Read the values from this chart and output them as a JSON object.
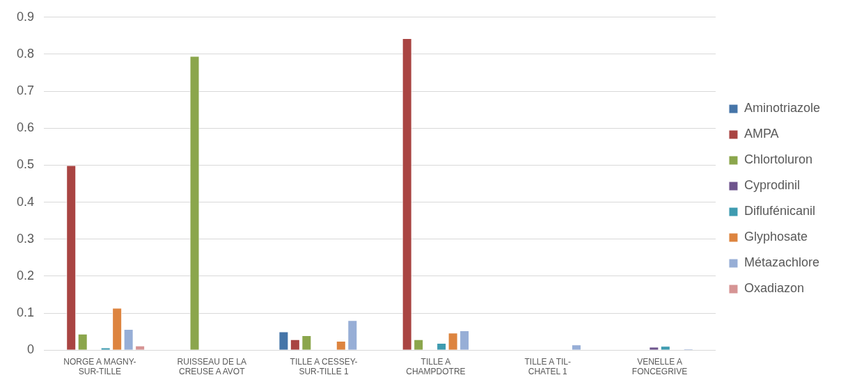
{
  "chart_data": {
    "type": "bar",
    "categories": [
      "NORGE A MAGNY-SUR-TILLE",
      "RUISSEAU DE LA CREUSE A AVOT",
      "TILLE A CESSEY-SUR-TILLE 1",
      "TILLE A CHAMPDOTRE",
      "TILLE A TIL-CHATEL 1",
      "VENELLE A FONCEGRIVE"
    ],
    "series": [
      {
        "name": "Aminotriazole",
        "color": "#4675a8",
        "values": [
          null,
          null,
          0.05,
          null,
          null,
          null
        ]
      },
      {
        "name": "AMPA",
        "color": "#a94442",
        "values": [
          0.5,
          null,
          0.029,
          0.843,
          null,
          null
        ]
      },
      {
        "name": "Chlortoluron",
        "color": "#8ba64c",
        "values": [
          0.044,
          0.795,
          0.04,
          0.029,
          null,
          null
        ]
      },
      {
        "name": "Cyprodinil",
        "color": "#6e548d",
        "values": [
          null,
          null,
          null,
          null,
          null,
          0.009
        ]
      },
      {
        "name": "Diflufénicanil",
        "color": "#3e9bb0",
        "values": [
          0.007,
          null,
          null,
          0.019,
          null,
          0.011
        ]
      },
      {
        "name": "Glyphosate",
        "color": "#dd843f",
        "values": [
          0.114,
          null,
          0.025,
          0.047,
          null,
          null
        ]
      },
      {
        "name": "Métazachlore",
        "color": "#97aed6",
        "values": [
          0.057,
          null,
          0.081,
          0.053,
          0.015,
          0.004
        ]
      },
      {
        "name": "Oxadiazon",
        "color": "#d69494",
        "values": [
          0.012,
          null,
          null,
          null,
          null,
          null
        ]
      }
    ],
    "ylim": [
      0,
      0.9
    ],
    "yticks": [
      0,
      0.1,
      0.2,
      0.3,
      0.4,
      0.5,
      0.6,
      0.7,
      0.8,
      0.9
    ],
    "grid": "y",
    "legend": "right"
  }
}
